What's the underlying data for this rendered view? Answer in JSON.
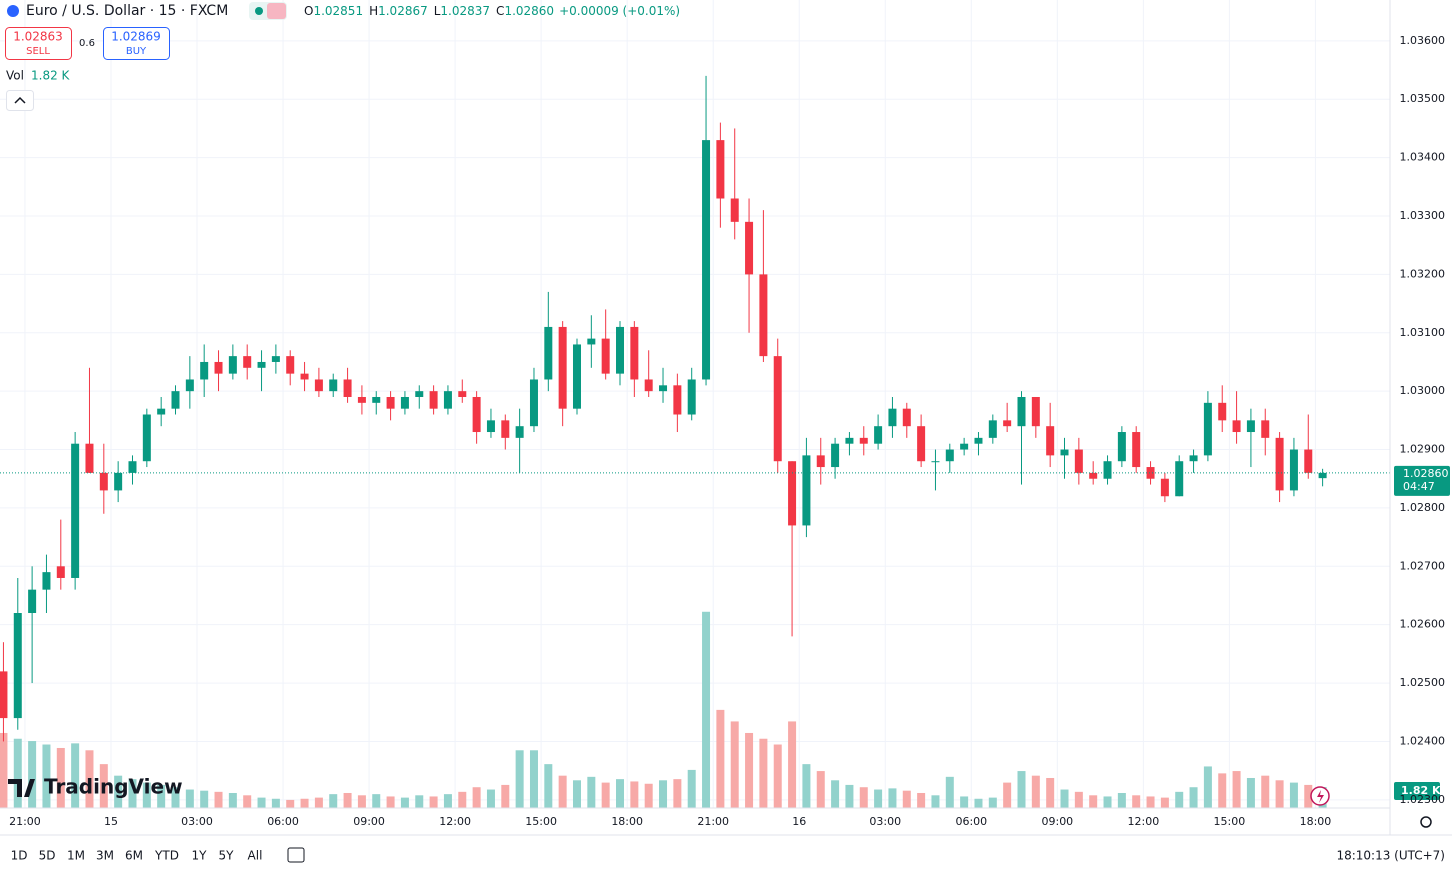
{
  "header": {
    "symbol": "Euro / U.S. Dollar · 15 · FXCM",
    "ohlc_labels": [
      "O",
      "H",
      "L",
      "C"
    ],
    "ohlc": [
      1.02851,
      1.02867,
      1.02837,
      {
        "value": 1.0286,
        "label": "1.02860"
      }
    ],
    "change": "+0.00009 (+0.01%)"
  },
  "trade": {
    "sell": 1.02863,
    "sell_label": "SELL",
    "spread": 0.6,
    "buy": 1.02869,
    "buy_label": "BUY"
  },
  "volume_legend": {
    "label": "Vol",
    "value": "1.82 K"
  },
  "brand": "TradingView",
  "toolbar": {
    "ranges": [
      "1D",
      "5D",
      "1M",
      "3M",
      "6M",
      "YTD",
      "1Y",
      "5Y",
      "All"
    ],
    "clock": "18:10:13 (UTC+7)"
  },
  "chart_data": {
    "type": "candlestick",
    "x": [
      -0.75,
      -0.25,
      0.25,
      0.75,
      1.25,
      1.75,
      2.25,
      2.75,
      3.25,
      3.75,
      4.25,
      4.75,
      5.25,
      5.75,
      6.25,
      6.75,
      7.25,
      7.75,
      8.25,
      8.75,
      9.25,
      9.75,
      10.25,
      10.75,
      11.25,
      11.75,
      12.25,
      12.75,
      13.25,
      13.75,
      14.25,
      14.75,
      15.25,
      15.75,
      16.25,
      16.75,
      17.25,
      17.75,
      18.25,
      18.75,
      19.25,
      19.75,
      20.25,
      20.75,
      21.25,
      21.75,
      22.25,
      22.75,
      23.25,
      23.75,
      24.25,
      24.75,
      25.25,
      25.75,
      26.25,
      26.75,
      27.25,
      27.75,
      28.25,
      28.75,
      29.25,
      29.75,
      30.25,
      30.75,
      31.25,
      31.75,
      32.25,
      32.75,
      33.25,
      33.75,
      34.25,
      34.75,
      35.25,
      35.75,
      36.25,
      36.75,
      37.25,
      37.75,
      38.25,
      38.75,
      39.25,
      39.75,
      40.25,
      40.75,
      41.25,
      41.75,
      42.25,
      42.75,
      43.25,
      43.75,
      44.25,
      44.75,
      45.25
    ],
    "open": [
      1.0252,
      1.0244,
      1.0262,
      1.0266,
      1.027,
      1.0268,
      1.0291,
      1.0286,
      1.0283,
      1.0286,
      1.0288,
      1.0296,
      1.0297,
      1.03,
      1.0302,
      1.0305,
      1.0303,
      1.0306,
      1.0304,
      1.0305,
      1.0306,
      1.0303,
      1.0302,
      1.03,
      1.0302,
      1.0299,
      1.0298,
      1.0299,
      1.0297,
      1.0299,
      1.03,
      1.0297,
      1.03,
      1.0299,
      1.0293,
      1.0295,
      1.0292,
      1.0294,
      1.0302,
      1.0311,
      1.0297,
      1.0308,
      1.0309,
      1.0303,
      1.0311,
      1.0302,
      1.03,
      1.0301,
      1.0296,
      1.0302,
      1.0343,
      1.0333,
      1.0329,
      1.032,
      1.0306,
      1.0288,
      1.0277,
      1.0289,
      1.0287,
      1.0291,
      1.0292,
      1.0291,
      1.0294,
      1.0297,
      1.0294,
      1.0288,
      1.0288,
      1.029,
      1.0291,
      1.0292,
      1.0295,
      1.0294,
      1.0299,
      1.0294,
      1.0289,
      1.029,
      1.0286,
      1.0285,
      1.0288,
      1.0293,
      1.0287,
      1.0285,
      1.0282,
      1.0288,
      1.0289,
      1.0298,
      1.0295,
      1.0293,
      1.0295,
      1.0292,
      1.0283,
      1.029,
      1.02851
    ],
    "high": [
      1.0257,
      1.0268,
      1.027,
      1.0272,
      1.0278,
      1.0293,
      1.0304,
      1.0291,
      1.0288,
      1.0289,
      1.0297,
      1.0299,
      1.0301,
      1.0306,
      1.0308,
      1.0307,
      1.0308,
      1.0308,
      1.0307,
      1.0308,
      1.0307,
      1.0305,
      1.0304,
      1.0303,
      1.0304,
      1.0301,
      1.03,
      1.03,
      1.03,
      1.0301,
      1.0301,
      1.0301,
      1.0302,
      1.03,
      1.0297,
      1.0296,
      1.0297,
      1.0304,
      1.0317,
      1.0312,
      1.0309,
      1.0313,
      1.0314,
      1.0312,
      1.0312,
      1.0307,
      1.0304,
      1.0303,
      1.0304,
      1.0354,
      1.0346,
      1.0345,
      1.0333,
      1.0331,
      1.0309,
      1.0288,
      1.0292,
      1.0292,
      1.0292,
      1.0293,
      1.0294,
      1.0296,
      1.0299,
      1.0298,
      1.0296,
      1.029,
      1.0291,
      1.0292,
      1.0293,
      1.0296,
      1.0298,
      1.03,
      1.0299,
      1.0298,
      1.0292,
      1.0292,
      1.0288,
      1.0289,
      1.0294,
      1.0294,
      1.0288,
      1.0286,
      1.0289,
      1.029,
      1.03,
      1.0301,
      1.03,
      1.0297,
      1.0297,
      1.0293,
      1.0292,
      1.0296,
      1.02867
    ],
    "low": [
      1.024,
      1.0242,
      1.025,
      1.0262,
      1.0266,
      1.0266,
      1.0286,
      1.0279,
      1.0281,
      1.0284,
      1.0287,
      1.0294,
      1.0296,
      1.0297,
      1.0299,
      1.03,
      1.0302,
      1.0302,
      1.03,
      1.0303,
      1.0301,
      1.03,
      1.0299,
      1.0299,
      1.0298,
      1.0296,
      1.0296,
      1.0295,
      1.0296,
      1.0297,
      1.0296,
      1.0296,
      1.0298,
      1.0291,
      1.0292,
      1.029,
      1.0286,
      1.0293,
      1.03,
      1.0294,
      1.0296,
      1.0304,
      1.0302,
      1.0301,
      1.0299,
      1.0299,
      1.0298,
      1.0293,
      1.0295,
      1.0301,
      1.0328,
      1.0326,
      1.031,
      1.0305,
      1.0286,
      1.0258,
      1.0275,
      1.0284,
      1.0285,
      1.0289,
      1.0289,
      1.029,
      1.0292,
      1.0292,
      1.0287,
      1.0283,
      1.0286,
      1.0289,
      1.0289,
      1.0291,
      1.0293,
      1.0284,
      1.0292,
      1.0287,
      1.0285,
      1.0284,
      1.0284,
      1.0284,
      1.0287,
      1.0286,
      1.0284,
      1.0281,
      1.0282,
      1.0286,
      1.0288,
      1.0293,
      1.0291,
      1.0287,
      1.0289,
      1.0281,
      1.0282,
      1.0285,
      1.02837
    ],
    "close": [
      1.0244,
      1.0262,
      1.0266,
      1.0269,
      1.0268,
      1.0291,
      1.0286,
      1.0283,
      1.0286,
      1.0288,
      1.0296,
      1.0297,
      1.03,
      1.0302,
      1.0305,
      1.0303,
      1.0306,
      1.0304,
      1.0305,
      1.0306,
      1.0303,
      1.0302,
      1.03,
      1.0302,
      1.0299,
      1.0298,
      1.0299,
      1.0297,
      1.0299,
      1.03,
      1.0297,
      1.03,
      1.0299,
      1.0293,
      1.0295,
      1.0292,
      1.0294,
      1.0302,
      1.0311,
      1.0297,
      1.0308,
      1.0309,
      1.0303,
      1.0311,
      1.0302,
      1.03,
      1.0301,
      1.0296,
      1.0302,
      1.0343,
      1.0333,
      1.0329,
      1.032,
      1.0306,
      1.0288,
      1.0277,
      1.0289,
      1.0287,
      1.0291,
      1.0292,
      1.0291,
      1.0294,
      1.0297,
      1.0294,
      1.0288,
      1.0288,
      1.029,
      1.0291,
      1.0292,
      1.0295,
      1.0294,
      1.0299,
      1.0294,
      1.0289,
      1.029,
      1.0286,
      1.0285,
      1.0288,
      1.0293,
      1.0287,
      1.0285,
      1.0282,
      1.0288,
      1.0289,
      1.0298,
      1.0295,
      1.0293,
      1.0295,
      1.0292,
      1.0283,
      1.029,
      1.0286,
      1.0286
    ],
    "volume": [
      6500,
      6000,
      5800,
      5500,
      5200,
      5600,
      5000,
      3800,
      2800,
      2500,
      2200,
      2000,
      1800,
      1600,
      1500,
      1400,
      1300,
      1100,
      900,
      800,
      700,
      800,
      900,
      1200,
      1300,
      1100,
      1200,
      1000,
      900,
      1100,
      1000,
      1200,
      1400,
      1800,
      1600,
      2000,
      5000,
      5000,
      3800,
      2800,
      2400,
      2700,
      2200,
      2500,
      2300,
      2100,
      2400,
      2500,
      3300,
      17000,
      8500,
      7500,
      6500,
      6000,
      5500,
      7500,
      3800,
      3200,
      2400,
      2000,
      1800,
      1600,
      1700,
      1500,
      1300,
      1100,
      2700,
      1000,
      800,
      900,
      2200,
      3200,
      2800,
      2600,
      1600,
      1400,
      1100,
      1000,
      1300,
      1100,
      1000,
      900,
      1400,
      1800,
      3600,
      3000,
      3200,
      2600,
      2800,
      2400,
      2200,
      2000,
      1820
    ],
    "xlim": [
      -0.87,
      47.6
    ],
    "xticks": [
      {
        "value": 0,
        "label": "21:00"
      },
      {
        "value": 3,
        "label": "15"
      },
      {
        "value": 6,
        "label": "03:00"
      },
      {
        "value": 9,
        "label": "06:00"
      },
      {
        "value": 12,
        "label": "09:00"
      },
      {
        "value": 15,
        "label": "12:00"
      },
      {
        "value": 18,
        "label": "15:00"
      },
      {
        "value": 21,
        "label": "18:00"
      },
      {
        "value": 24,
        "label": "21:00"
      },
      {
        "value": 27,
        "label": "16"
      },
      {
        "value": 30,
        "label": "03:00"
      },
      {
        "value": 33,
        "label": "06:00"
      },
      {
        "value": 36,
        "label": "09:00"
      },
      {
        "value": 39,
        "label": "12:00"
      },
      {
        "value": 42,
        "label": "15:00"
      },
      {
        "value": 45,
        "label": "18:00"
      }
    ],
    "ylim": [
      1.02286,
      1.0367
    ],
    "yticks": [
      {
        "value": 1.036,
        "label": "1.03600"
      },
      {
        "value": 1.035,
        "label": "1.03500"
      },
      {
        "value": 1.034,
        "label": "1.03400"
      },
      {
        "value": 1.033,
        "label": "1.03300"
      },
      {
        "value": 1.032,
        "label": "1.03200"
      },
      {
        "value": 1.031,
        "label": "1.03100"
      },
      {
        "value": 1.03,
        "label": "1.03000"
      },
      {
        "value": 1.029,
        "label": "1.02900"
      },
      {
        "value": 1.028,
        "label": "1.02800"
      },
      {
        "value": 1.027,
        "label": "1.02700"
      },
      {
        "value": 1.026,
        "label": "1.02600"
      },
      {
        "value": 1.025,
        "label": "1.02500"
      },
      {
        "value": 1.024,
        "label": "1.02400"
      },
      {
        "value": 1.023,
        "label": "1.02300"
      }
    ],
    "vlim": [
      0,
      70000
    ],
    "grid": true,
    "up_color": "#089981",
    "down_color": "#f23645",
    "volume_up_color": "#92d2cc",
    "volume_down_color": "#f7a9a7",
    "last_price": {
      "value": 1.0286,
      "label": "1.02860",
      "countdown": "04:47"
    },
    "volume_tag": "1.82 K"
  }
}
